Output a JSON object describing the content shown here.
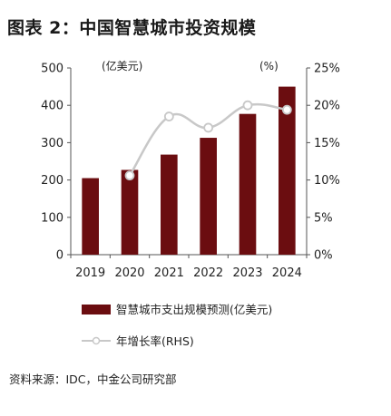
{
  "title": "图表 2：中国智慧城市投资规模",
  "source": "资料来源：IDC，中金公司研究部",
  "chart_data": {
    "type": "bar",
    "categories": [
      "2019",
      "2020",
      "2021",
      "2022",
      "2023",
      "2024"
    ],
    "series": [
      {
        "name": "智慧城市支出规模预测(亿美元)",
        "type": "bar",
        "axis": "left",
        "values": [
          205,
          227,
          268,
          313,
          377,
          450
        ],
        "color": "#6b0d10"
      },
      {
        "name": "年增长率(RHS)",
        "type": "line",
        "axis": "right",
        "values": [
          null,
          10.6,
          18.5,
          17.0,
          20.0,
          19.4
        ],
        "color": "#c8c8c8"
      }
    ],
    "ylim": [
      0,
      500
    ],
    "y_ticks": [
      "0",
      "100",
      "200",
      "300",
      "400",
      "500"
    ],
    "y_unit": "(亿美元)",
    "y2lim": [
      0,
      25
    ],
    "y2_ticks": [
      "0%",
      "5%",
      "10%",
      "15%",
      "20%",
      "25%"
    ],
    "y2_unit": "(%)",
    "grid": false,
    "legend_position": "bottom"
  }
}
